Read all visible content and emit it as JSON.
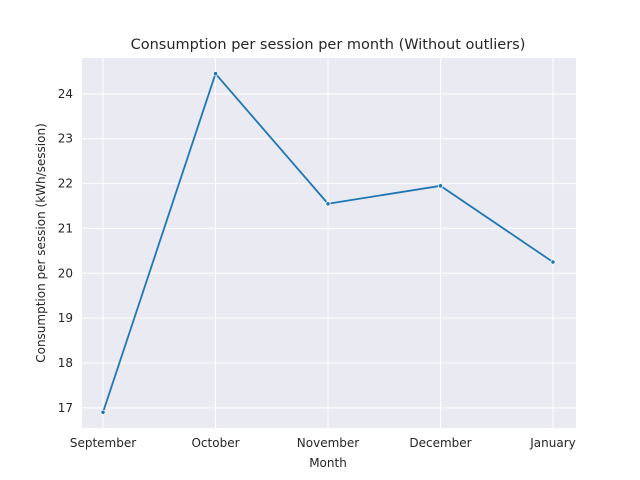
{
  "chart_data": {
    "type": "line",
    "title": "Consumption per session per month (Without outliers)",
    "xlabel": "Month",
    "ylabel": "Consumption per session (kWh/session)",
    "categories": [
      "September",
      "October",
      "November",
      "December",
      "January"
    ],
    "series": [
      {
        "values": [
          16.9,
          24.45,
          21.55,
          21.95,
          20.25
        ],
        "color": "#1f77b4"
      }
    ],
    "ylim": [
      16.55,
      24.8
    ],
    "yticks": [
      17,
      18,
      19,
      20,
      21,
      22,
      23,
      24
    ],
    "grid": true,
    "background": "#eaeaf2"
  }
}
